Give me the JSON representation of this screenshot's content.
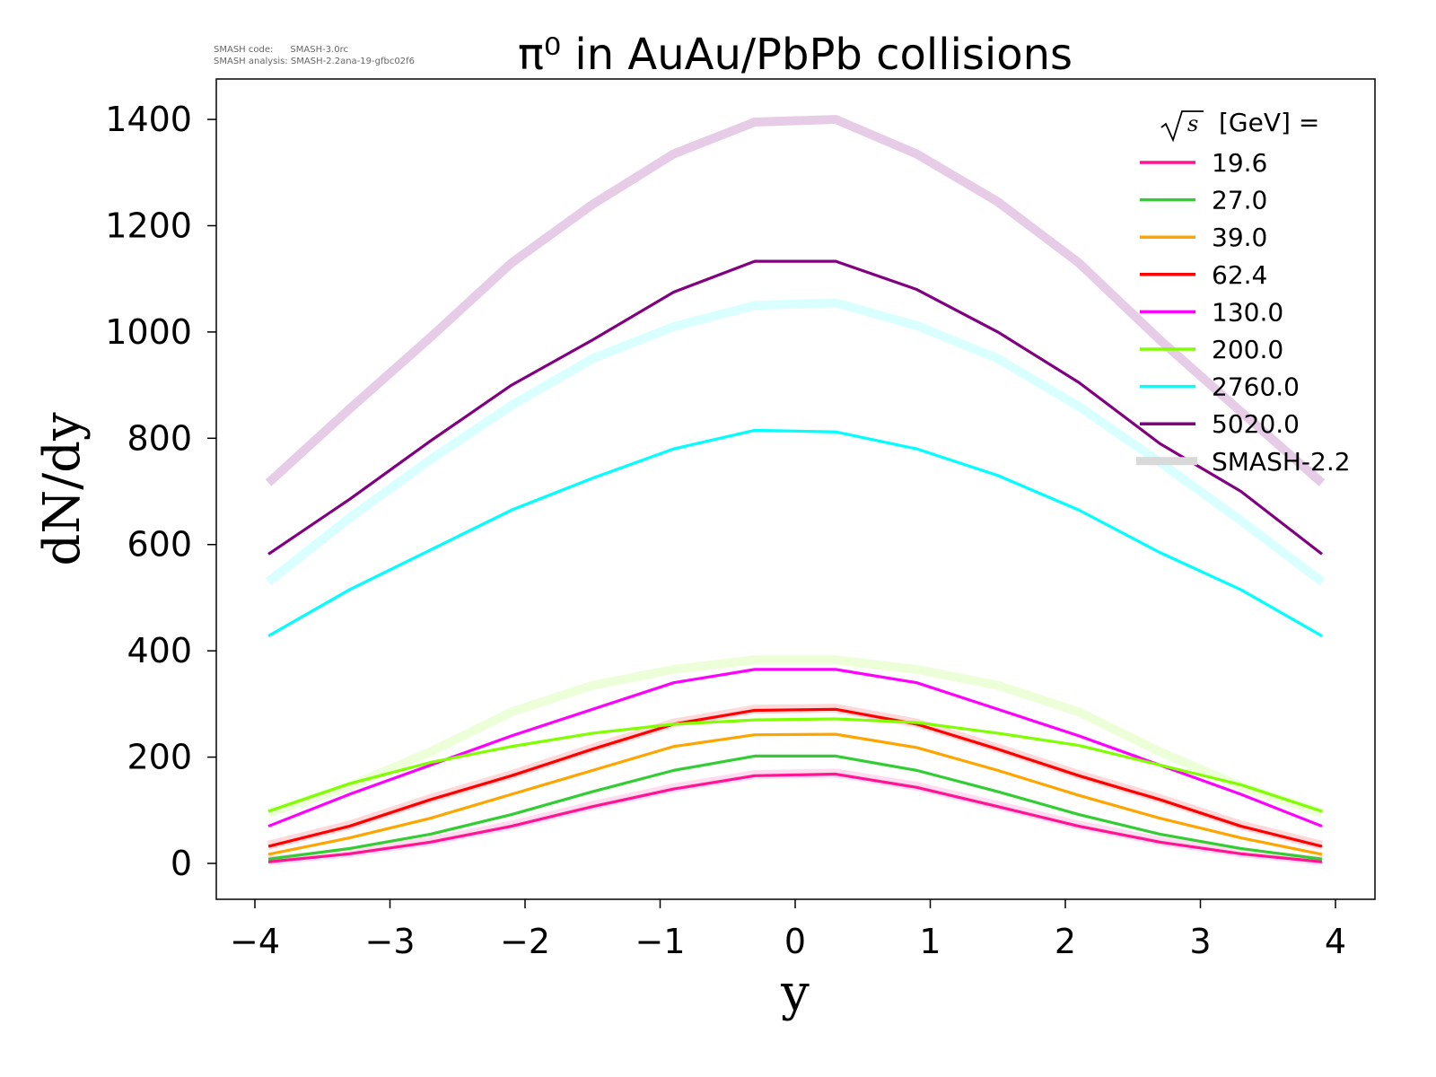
{
  "chart_data": {
    "type": "line",
    "title": "π⁰ in AuAu/PbPb collisions",
    "meta": [
      "SMASH code:      SMASH-3.0rc",
      "SMASH analysis: SMASH-2.2ana-19-gfbc02f6"
    ],
    "xlabel": "y",
    "ylabel": "dN/dy",
    "xlim": [
      -4.3,
      4.3
    ],
    "ylim": [
      -70,
      1480
    ],
    "xticks": [
      -4,
      -3,
      -2,
      -1,
      0,
      1,
      2,
      3,
      4
    ],
    "xtick_labels": [
      "−4",
      "−3",
      "−2",
      "−1",
      "0",
      "1",
      "2",
      "3",
      "4"
    ],
    "yticks": [
      0,
      200,
      400,
      600,
      800,
      1000,
      1200,
      1400
    ],
    "ytick_labels": [
      "0",
      "200",
      "400",
      "600",
      "800",
      "1000",
      "1200",
      "1400"
    ],
    "legend": {
      "title_radical": "s",
      "title": "[GeV] =",
      "placement": "top-right",
      "reference_label": "SMASH-2.2",
      "reference_color": "#d9d9d9"
    },
    "x": [
      -3.9,
      -3.3,
      -2.7,
      -2.1,
      -1.5,
      -0.9,
      -0.3,
      0.3,
      0.9,
      1.5,
      2.1,
      2.7,
      3.3,
      3.9
    ],
    "reference_series": [
      {
        "name": "SMASH-2.2 200.0",
        "color": "#7fff00",
        "values": [
          95,
          145,
          210,
          285,
          335,
          365,
          383,
          383,
          365,
          335,
          285,
          210,
          145,
          95
        ]
      },
      {
        "name": "SMASH-2.2 2760.0",
        "color": "#00ffff",
        "values": [
          530,
          650,
          760,
          862,
          950,
          1010,
          1050,
          1055,
          1012,
          950,
          860,
          755,
          645,
          530
        ]
      },
      {
        "name": "SMASH-2.2 5020.0",
        "color": "#800080",
        "values": [
          716,
          855,
          990,
          1130,
          1240,
          1335,
          1395,
          1400,
          1335,
          1245,
          1130,
          985,
          850,
          716
        ]
      },
      {
        "name": "SMASH-2.2 62.4",
        "color": "#ff0000",
        "values": [
          34,
          72,
          122,
          167,
          217,
          264,
          290,
          292,
          264,
          217,
          167,
          122,
          72,
          34
        ]
      },
      {
        "name": "SMASH-2.2 19.6",
        "color": "#ff1493",
        "values": [
          5,
          20,
          42,
          72,
          109,
          142,
          167,
          170,
          145,
          109,
          72,
          42,
          20,
          5
        ]
      }
    ],
    "series": [
      {
        "name": "19.6",
        "color": "#ff1493",
        "values": [
          3,
          18,
          40,
          70,
          107,
          140,
          165,
          168,
          143,
          107,
          70,
          40,
          18,
          3
        ]
      },
      {
        "name": "27.0",
        "color": "#32cd32",
        "values": [
          8,
          28,
          55,
          92,
          135,
          175,
          202,
          202,
          175,
          135,
          92,
          55,
          28,
          8
        ]
      },
      {
        "name": "39.0",
        "color": "#ffa500",
        "values": [
          17,
          48,
          85,
          130,
          175,
          220,
          242,
          243,
          218,
          175,
          128,
          85,
          48,
          17
        ]
      },
      {
        "name": "62.4",
        "color": "#ff0000",
        "values": [
          32,
          70,
          120,
          165,
          215,
          262,
          288,
          290,
          262,
          215,
          165,
          120,
          70,
          32
        ]
      },
      {
        "name": "130.0",
        "color": "#ff00ff",
        "values": [
          70,
          130,
          185,
          240,
          290,
          340,
          365,
          365,
          340,
          290,
          240,
          185,
          130,
          70
        ]
      },
      {
        "name": "200.0",
        "color": "#7fff00",
        "values": [
          98,
          150,
          190,
          220,
          245,
          262,
          270,
          272,
          265,
          245,
          222,
          185,
          148,
          98
        ]
      },
      {
        "name": "2760.0",
        "color": "#00ffff",
        "values": [
          428,
          515,
          590,
          665,
          725,
          780,
          815,
          812,
          780,
          730,
          665,
          585,
          515,
          428
        ]
      },
      {
        "name": "5020.0",
        "color": "#800080",
        "values": [
          582,
          685,
          795,
          900,
          985,
          1075,
          1133,
          1133,
          1080,
          1000,
          905,
          790,
          700,
          582
        ]
      }
    ]
  }
}
